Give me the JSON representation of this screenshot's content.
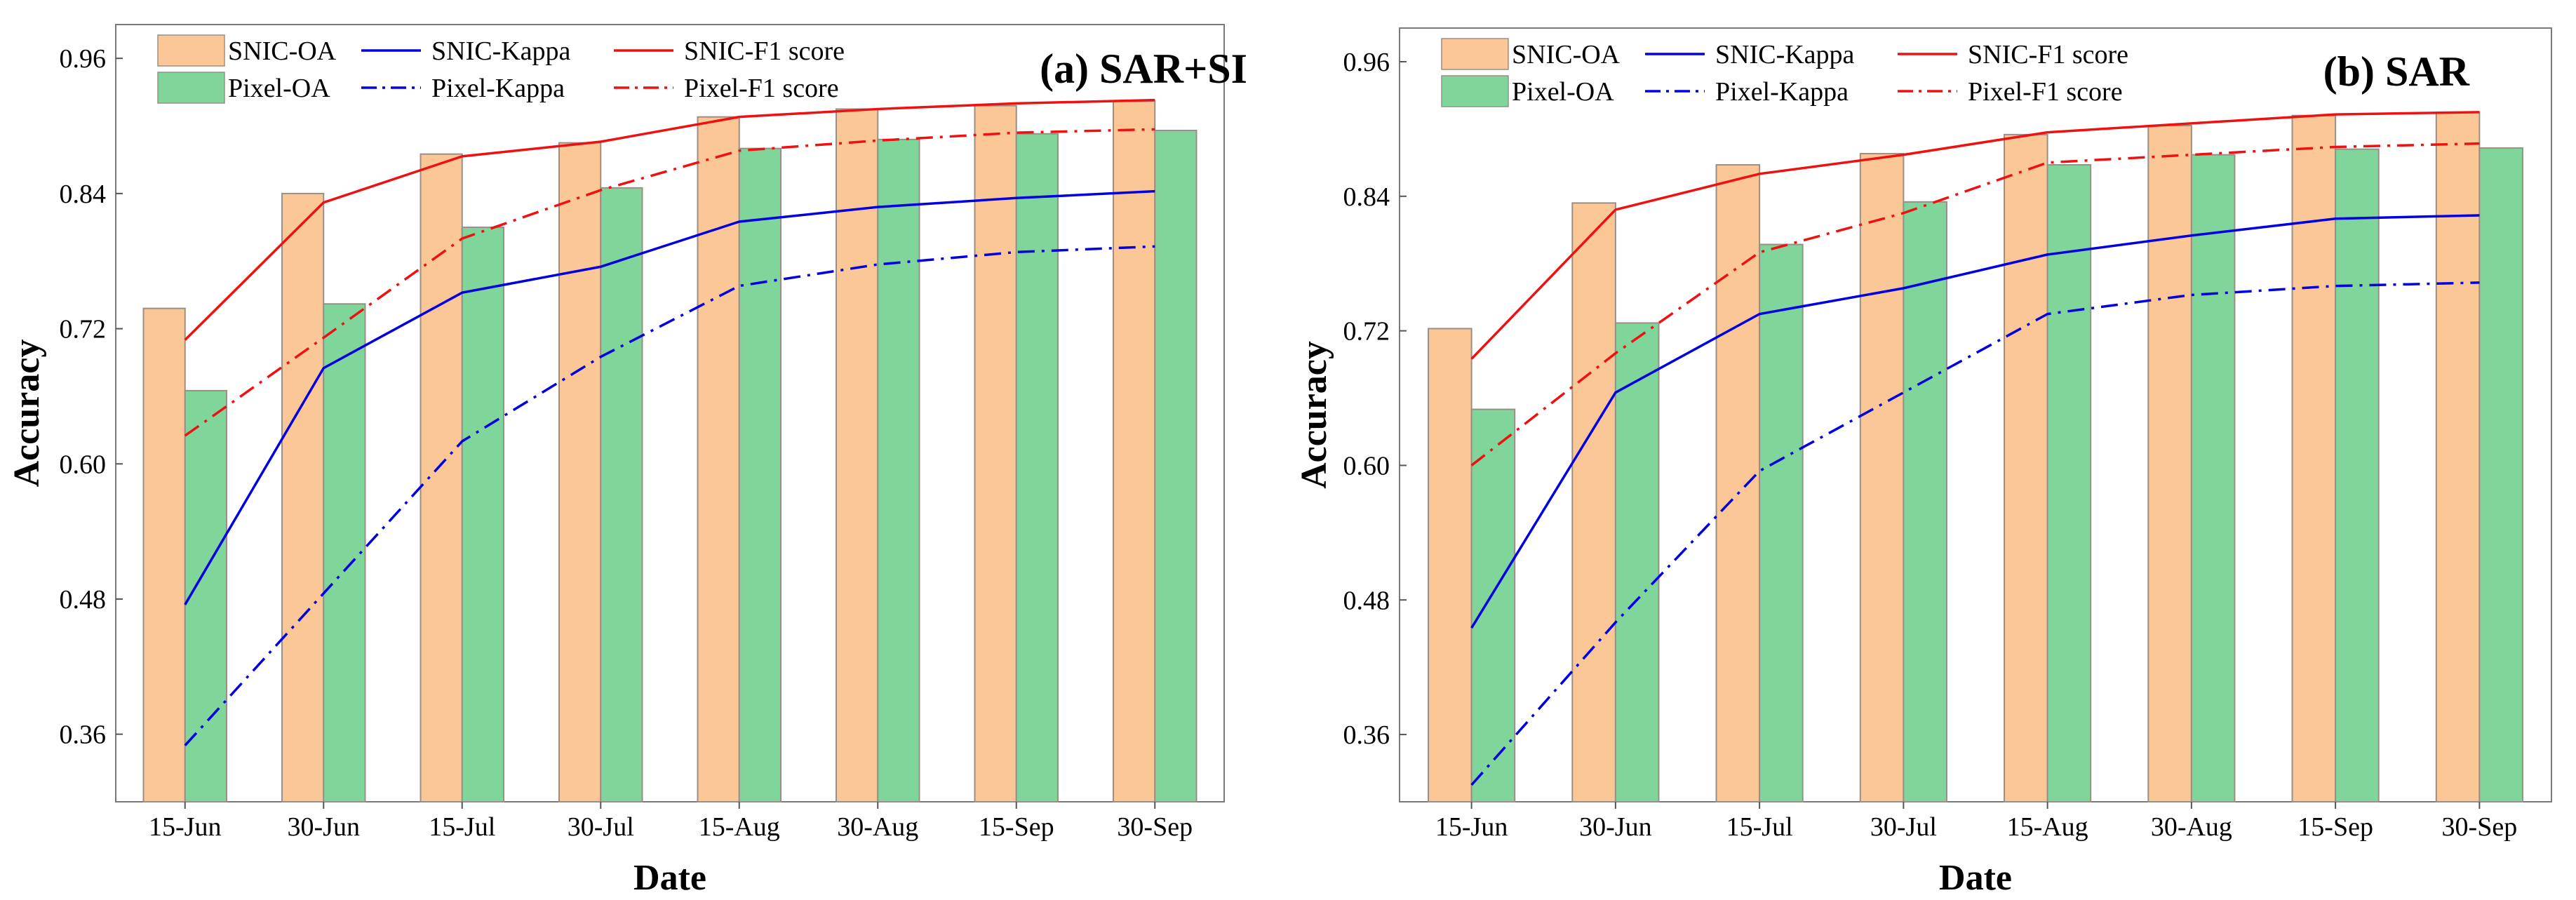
{
  "chart_data": [
    {
      "type": "bar",
      "title": "(a) SAR+SI",
      "xlabel": "Date",
      "ylabel": "Accuracy",
      "categories": [
        "15-Jun",
        "30-Jun",
        "15-Jul",
        "30-Jul",
        "15-Aug",
        "30-Aug",
        "15-Sep",
        "30-Sep"
      ],
      "yticks": [
        "0.36",
        "0.48",
        "0.60",
        "0.72",
        "0.84",
        "0.96"
      ],
      "ylim": [
        0.3,
        0.99
      ],
      "grid": false,
      "legend_position": "top-left",
      "series": [
        {
          "name": "SNIC-OA",
          "kind": "bar",
          "color": "#fcc796",
          "values": [
            0.738,
            0.84,
            0.875,
            0.885,
            0.908,
            0.915,
            0.918,
            0.922
          ]
        },
        {
          "name": "Pixel-OA",
          "kind": "bar",
          "color": "#7fd59a",
          "values": [
            0.665,
            0.742,
            0.81,
            0.845,
            0.88,
            0.888,
            0.893,
            0.896
          ]
        },
        {
          "name": "SNIC-Kappa",
          "kind": "line",
          "style": "solid",
          "color": "#0000e0",
          "values": [
            0.475,
            0.685,
            0.752,
            0.775,
            0.815,
            0.828,
            0.836,
            0.842
          ]
        },
        {
          "name": "Pixel-Kappa",
          "kind": "line",
          "style": "dashdot",
          "color": "#0000e0",
          "values": [
            0.35,
            0.485,
            0.62,
            0.695,
            0.758,
            0.777,
            0.788,
            0.793
          ]
        },
        {
          "name": "SNIC-F1 score",
          "kind": "line",
          "style": "solid",
          "color": "#ee1111",
          "values": [
            0.71,
            0.832,
            0.873,
            0.886,
            0.908,
            0.915,
            0.92,
            0.923
          ]
        },
        {
          "name": "Pixel-F1 score",
          "kind": "line",
          "style": "dashdot",
          "color": "#ee1111",
          "values": [
            0.625,
            0.712,
            0.8,
            0.843,
            0.878,
            0.887,
            0.894,
            0.897
          ]
        }
      ]
    },
    {
      "type": "bar",
      "title": "(b) SAR",
      "xlabel": "Date",
      "ylabel": "Accuracy",
      "categories": [
        "15-Jun",
        "30-Jun",
        "15-Jul",
        "30-Jul",
        "15-Aug",
        "30-Aug",
        "15-Sep",
        "30-Sep"
      ],
      "yticks": [
        "0.36",
        "0.48",
        "0.60",
        "0.72",
        "0.84",
        "0.96"
      ],
      "ylim": [
        0.3,
        0.99
      ],
      "grid": false,
      "legend_position": "top-left",
      "series": [
        {
          "name": "SNIC-OA",
          "kind": "bar",
          "color": "#fcc796",
          "values": [
            0.722,
            0.834,
            0.868,
            0.878,
            0.895,
            0.903,
            0.912,
            0.915
          ]
        },
        {
          "name": "Pixel-OA",
          "kind": "bar",
          "color": "#7fd59a",
          "values": [
            0.65,
            0.727,
            0.797,
            0.835,
            0.868,
            0.877,
            0.882,
            0.883
          ]
        },
        {
          "name": "SNIC-Kappa",
          "kind": "line",
          "style": "solid",
          "color": "#0000e0",
          "values": [
            0.455,
            0.665,
            0.735,
            0.758,
            0.788,
            0.805,
            0.82,
            0.823
          ]
        },
        {
          "name": "Pixel-Kappa",
          "kind": "line",
          "style": "dashdot",
          "color": "#0000e0",
          "values": [
            0.315,
            0.46,
            0.595,
            0.665,
            0.735,
            0.752,
            0.76,
            0.763
          ]
        },
        {
          "name": "SNIC-F1 score",
          "kind": "line",
          "style": "solid",
          "color": "#ee1111",
          "values": [
            0.695,
            0.828,
            0.86,
            0.877,
            0.897,
            0.905,
            0.913,
            0.915
          ]
        },
        {
          "name": "Pixel-F1 score",
          "kind": "line",
          "style": "dashdot",
          "color": "#ee1111",
          "values": [
            0.6,
            0.7,
            0.79,
            0.825,
            0.87,
            0.877,
            0.884,
            0.887
          ]
        }
      ]
    }
  ]
}
